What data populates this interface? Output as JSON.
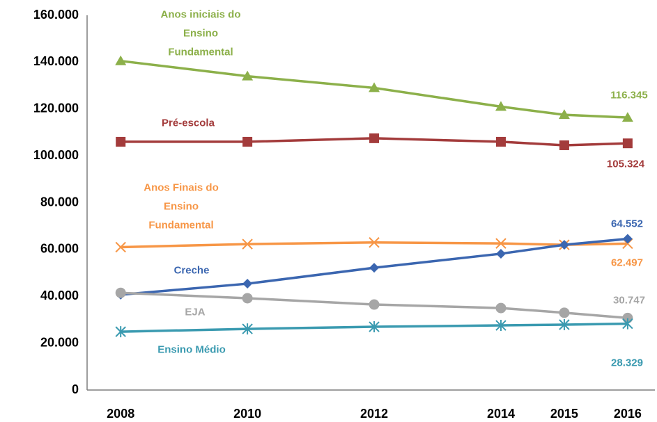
{
  "chart_data": {
    "type": "line",
    "x": [
      2008,
      2010,
      2012,
      2014,
      2015,
      2016
    ],
    "xlim": [
      2007.47,
      2016.43
    ],
    "xticks": [
      2008,
      2010,
      2012,
      2014,
      2015,
      2016
    ],
    "ylim": [
      0,
      160000
    ],
    "yticks": [
      0,
      {
        "value": 20000,
        "label": "20.000"
      },
      {
        "value": 40000,
        "label": "40.000"
      },
      {
        "value": 60000,
        "label": "60.000"
      },
      {
        "value": 80000,
        "label": "80.000"
      },
      {
        "value": 100000,
        "label": "100.000"
      },
      {
        "value": 120000,
        "label": "120.000"
      },
      {
        "value": 140000,
        "label": "140.000"
      },
      {
        "value": 160000,
        "label": "160.000"
      }
    ],
    "grid": false,
    "series": [
      {
        "name": "Anos iniciais do\nEnsino\nFundamental",
        "color": "#8cb04a",
        "marker": "triangle",
        "values": [
          140500,
          134000,
          129000,
          121000,
          117500,
          116345
        ],
        "value_labels": [
          null,
          null,
          null,
          null,
          null,
          "116.345"
        ]
      },
      {
        "name": "Pré-escola",
        "color": "#a33b3b",
        "marker": "square",
        "values": [
          106000,
          106000,
          107500,
          106000,
          104500,
          105324
        ],
        "value_labels": [
          null,
          null,
          null,
          null,
          null,
          "105.324"
        ]
      },
      {
        "name": "Anos Finais do\nEnsino\nFundamental",
        "color": "#f79646",
        "marker": "x",
        "values": [
          61000,
          62300,
          63000,
          62600,
          62000,
          62497
        ],
        "value_labels": [
          null,
          null,
          null,
          null,
          null,
          "62.497"
        ]
      },
      {
        "name": "Creche",
        "color": "#3b66b0",
        "marker": "diamond",
        "values": [
          40700,
          45400,
          52200,
          58200,
          62000,
          64552
        ],
        "value_labels": [
          null,
          null,
          null,
          null,
          null,
          "64.552"
        ]
      },
      {
        "name": "EJA",
        "color": "#a6a6a6",
        "marker": "circle",
        "values": [
          41500,
          39200,
          36500,
          35000,
          33000,
          30747
        ],
        "value_labels": [
          null,
          null,
          null,
          null,
          null,
          "30.747"
        ]
      },
      {
        "name": "Ensino Médio",
        "color": "#3a9ab0",
        "marker": "asterisk",
        "values": [
          24900,
          26100,
          27000,
          27600,
          27900,
          28329
        ],
        "value_labels": [
          null,
          null,
          null,
          null,
          null,
          "28.329"
        ]
      }
    ]
  }
}
